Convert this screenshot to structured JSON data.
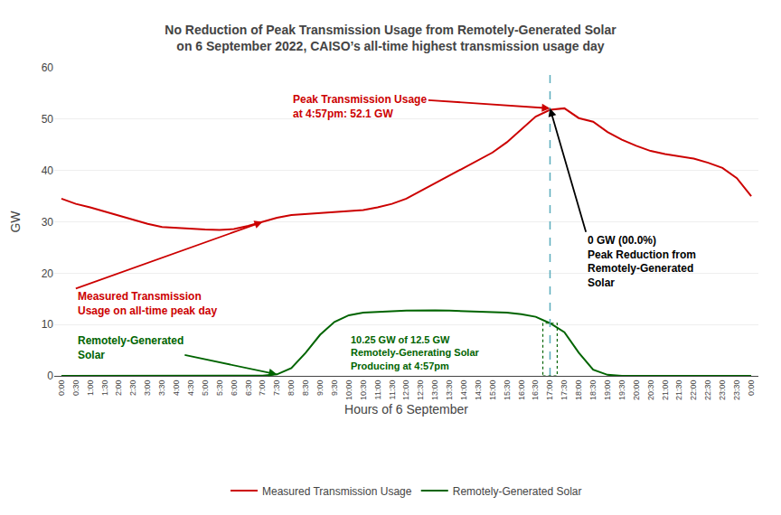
{
  "chart_data": {
    "type": "line",
    "title": "No Reduction of Peak Transmission Usage from Remotely-Generated Solar\non 6 September 2022, CAISO’s all-time highest transmission usage day",
    "xlabel": "Hours of 6 September",
    "ylabel": "GW",
    "categories": [
      "0:00",
      "0:30",
      "1:00",
      "1:30",
      "2:00",
      "2:30",
      "3:00",
      "3:30",
      "4:00",
      "4:30",
      "5:00",
      "5:30",
      "6:00",
      "6:30",
      "7:00",
      "7:30",
      "8:00",
      "8:30",
      "9:00",
      "9:30",
      "10:00",
      "10:30",
      "11:00",
      "11:30",
      "12:00",
      "12:30",
      "13:00",
      "13:30",
      "14:00",
      "14:30",
      "15:00",
      "15:30",
      "16:00",
      "16:30",
      "17:00",
      "17:30",
      "18:00",
      "18:30",
      "19:00",
      "19:30",
      "20:00",
      "20:30",
      "21:00",
      "21:30",
      "22:00",
      "22:30",
      "23:00",
      "23:30",
      "0:00"
    ],
    "series": [
      {
        "name": "Measured Transmission Usage",
        "color": "#cc0000",
        "values": [
          34.5,
          33.5,
          32.8,
          32.0,
          31.2,
          30.3,
          29.6,
          29.0,
          28.8,
          28.6,
          28.5,
          28.4,
          28.6,
          29.2,
          30.0,
          30.8,
          31.3,
          31.5,
          31.7,
          31.8,
          32.0,
          32.3,
          32.8,
          33.5,
          34.5,
          36.0,
          37.5,
          39.0,
          40.5,
          42.0,
          43.5,
          45.5,
          48.0,
          50.5,
          51.8,
          52.1,
          50.2,
          49.5,
          47.5,
          46.0,
          44.8,
          43.8,
          43.2,
          42.8,
          42.3,
          41.5,
          40.5,
          38.5,
          35.0
        ]
      },
      {
        "name": "Remotely-Generated Solar",
        "color": "#006400",
        "values": [
          0.0,
          0.0,
          0.0,
          0.0,
          0.0,
          0.0,
          0.0,
          0.0,
          0.0,
          0.0,
          0.0,
          0.0,
          0.0,
          0.0,
          0.05,
          0.3,
          1.5,
          4.5,
          8.0,
          10.5,
          11.8,
          12.3,
          12.5,
          12.6,
          12.7,
          12.75,
          12.75,
          12.7,
          12.6,
          12.5,
          12.4,
          12.3,
          12.0,
          11.5,
          10.25,
          8.5,
          4.5,
          1.2,
          0.2,
          0.0,
          0.0,
          0.0,
          0.0,
          0.0,
          0.0,
          0.0,
          0.0,
          0.0,
          0.0
        ]
      }
    ],
    "ylim": [
      0,
      60
    ],
    "yticks": [
      0,
      10,
      20,
      30,
      40,
      50,
      60
    ],
    "grid": true,
    "legend": "bottom",
    "vline": {
      "x": "17:00",
      "color": "#5aacbc",
      "line_style": "dashed"
    },
    "highlight_box": {
      "x": "17:00",
      "series": "Remotely-Generated Solar",
      "color": "#006400",
      "line_style": "dotted"
    },
    "peak_marker": {
      "x": "17:00",
      "y": 52.1
    },
    "annotations": [
      {
        "text": "Peak Transmission Usage\nat 4:57pm: 52.1 GW",
        "color": "#cc0000"
      },
      {
        "text": "Measured Transmission\nUsage on all-time peak day",
        "color": "#cc0000"
      },
      {
        "text": "Remotely-Generated\nSolar",
        "color": "#006400"
      },
      {
        "text": "10.25 GW of 12.5 GW\nRemotely-Generating Solar\nProducing at 4:57pm",
        "color": "#006400"
      },
      {
        "text": "0 GW (00.0%)\nPeak Reduction from\nRemotely-Generated\nSolar",
        "color": "#000000"
      }
    ]
  }
}
